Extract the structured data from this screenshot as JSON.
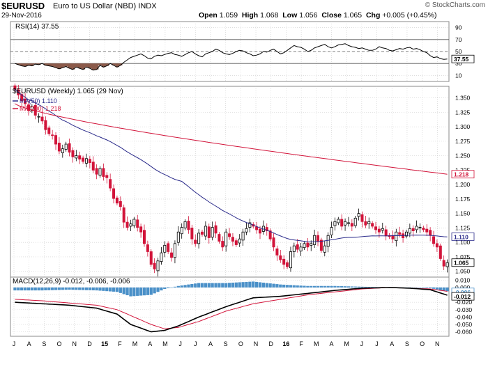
{
  "header": {
    "symbol": "$EURUSD",
    "name": "Euro to US Dollar (NBD)",
    "exchange": "INDX",
    "date": "29-Nov-2016",
    "open_label": "Open",
    "open": "1.059",
    "high_label": "High",
    "high": "1.068",
    "low_label": "Low",
    "low": "1.056",
    "close_label": "Close",
    "close": "1.065",
    "chg_label": "Chg",
    "chg": "+0.005 (+0.45%)",
    "credit": "© StockCharts.com"
  },
  "colors": {
    "up": "#000000",
    "down": "#d2143a",
    "ma50": "#2a2a8a",
    "ma200": "#d2143a",
    "rsi_line": "#000000",
    "rsi_fill": "#8b5a4a",
    "macd": "#000000",
    "signal": "#d2143a",
    "hist": "#4a90c8",
    "grid": "#cccccc"
  },
  "chart_data": [
    {
      "type": "line",
      "panel": "rsi",
      "title": "RSI(14) 37.55",
      "y_ticks": [
        "90",
        "70",
        "50",
        "30",
        "10"
      ],
      "ylim": [
        0,
        100
      ],
      "overbought": 70,
      "oversold": 30,
      "last_value_label": "37.55",
      "y_count": 128,
      "y_note": "weekly RSI, Jul-2014 to Nov-2016",
      "y": [
        30,
        28,
        26,
        25,
        27,
        26,
        29,
        28,
        30,
        27,
        26,
        25,
        23,
        21,
        23,
        25,
        22,
        20,
        24,
        22,
        20,
        24,
        22,
        19,
        20,
        27,
        24,
        26,
        30,
        27,
        24,
        27,
        32,
        36,
        40,
        42,
        44,
        46,
        43,
        39,
        38,
        42,
        44,
        43,
        45,
        47,
        48,
        45,
        44,
        42,
        45,
        48,
        50,
        46,
        43,
        41,
        46,
        48,
        50,
        54,
        52,
        48,
        46,
        45,
        47,
        50,
        52,
        51,
        48,
        46,
        43,
        44,
        46,
        50,
        49,
        52,
        54,
        50,
        46,
        48,
        52,
        56,
        60,
        58,
        57,
        54,
        50,
        52,
        56,
        58,
        60,
        62,
        58,
        56,
        58,
        61,
        62,
        63,
        60,
        58,
        57,
        55,
        56,
        54,
        52,
        52,
        54,
        58,
        56,
        55,
        52,
        51,
        53,
        55,
        54,
        56,
        57,
        54,
        55,
        53,
        50,
        48,
        43,
        40,
        41,
        38,
        37,
        37.55
      ]
    },
    {
      "type": "candlestick",
      "panel": "price",
      "title": "$EURUSD (Weekly) 1.065 (29 Nov)",
      "legend": [
        {
          "name": "MA(50) 1.110",
          "color": "#2a2a8a"
        },
        {
          "name": "MA(200) 1.218",
          "color": "#d2143a"
        }
      ],
      "y_ticks": [
        "1.350",
        "1.325",
        "1.300",
        "1.275",
        "1.250",
        "1.225",
        "1.200",
        "1.175",
        "1.150",
        "1.125",
        "1.100",
        "1.075",
        "1.050"
      ],
      "ylim": [
        1.04,
        1.37
      ],
      "x_ticks": [
        "J",
        "A",
        "S",
        "O",
        "N",
        "D",
        "15",
        "F",
        "M",
        "A",
        "M",
        "J",
        "J",
        "A",
        "S",
        "O",
        "N",
        "D",
        "16",
        "F",
        "M",
        "A",
        "M",
        "J",
        "J",
        "A",
        "S",
        "O",
        "N"
      ],
      "bold_x_ticks": [
        "15",
        "16"
      ],
      "current_price_label": "1.065",
      "ma50_label": "1.110",
      "ma200_label": "1.218",
      "close_count": 128,
      "close_note": "approximate weekly closes, Jul-2014 to Nov-2016",
      "close": [
        1.365,
        1.355,
        1.345,
        1.34,
        1.328,
        1.335,
        1.32,
        1.318,
        1.31,
        1.295,
        1.288,
        1.285,
        1.27,
        1.258,
        1.262,
        1.27,
        1.256,
        1.248,
        1.25,
        1.244,
        1.24,
        1.245,
        1.238,
        1.225,
        1.218,
        1.228,
        1.214,
        1.212,
        1.194,
        1.176,
        1.168,
        1.162,
        1.135,
        1.126,
        1.132,
        1.14,
        1.126,
        1.118,
        1.098,
        1.084,
        1.062,
        1.054,
        1.068,
        1.082,
        1.095,
        1.084,
        1.074,
        1.098,
        1.118,
        1.126,
        1.136,
        1.122,
        1.106,
        1.098,
        1.116,
        1.114,
        1.128,
        1.108,
        1.126,
        1.116,
        1.102,
        1.092,
        1.118,
        1.11,
        1.102,
        1.096,
        1.106,
        1.118,
        1.124,
        1.134,
        1.128,
        1.122,
        1.116,
        1.128,
        1.12,
        1.106,
        1.092,
        1.078,
        1.07,
        1.062,
        1.058,
        1.084,
        1.094,
        1.088,
        1.092,
        1.098,
        1.092,
        1.098,
        1.112,
        1.102,
        1.086,
        1.094,
        1.112,
        1.126,
        1.136,
        1.14,
        1.128,
        1.136,
        1.134,
        1.128,
        1.142,
        1.15,
        1.136,
        1.13,
        1.136,
        1.128,
        1.122,
        1.118,
        1.124,
        1.112,
        1.11,
        1.106,
        1.118,
        1.114,
        1.108,
        1.118,
        1.124,
        1.12,
        1.128,
        1.126,
        1.122,
        1.118,
        1.112,
        1.098,
        1.092,
        1.072,
        1.059,
        1.065
      ],
      "ma50_last": 1.11,
      "ma200_last": 1.218
    },
    {
      "type": "line",
      "panel": "macd",
      "title": "MACD(12,26,9) -0.012, -0.006, -0.006",
      "series_names": [
        "MACD",
        "Signal",
        "Histogram"
      ],
      "y_ticks": [
        "0.010",
        "0.000",
        "-0.010",
        "-0.020",
        "-0.030",
        "-0.040",
        "-0.050",
        "-0.060"
      ],
      "ylim": [
        -0.066,
        0.014
      ],
      "last_labels": [
        "-0.006",
        "-0.012"
      ],
      "x_ticks": [
        "J",
        "A",
        "S",
        "O",
        "N",
        "D",
        "15",
        "F",
        "M",
        "A",
        "M",
        "J",
        "J",
        "A",
        "S",
        "O",
        "N",
        "D",
        "16",
        "F",
        "M",
        "A",
        "M",
        "J",
        "J",
        "A",
        "S",
        "O",
        "N"
      ],
      "point_count": 128,
      "macd_anchors": [
        [
          0,
          -0.02
        ],
        [
          8,
          -0.022
        ],
        [
          16,
          -0.024
        ],
        [
          24,
          -0.028
        ],
        [
          30,
          -0.036
        ],
        [
          34,
          -0.05
        ],
        [
          40,
          -0.06
        ],
        [
          44,
          -0.058
        ],
        [
          48,
          -0.052
        ],
        [
          54,
          -0.04
        ],
        [
          62,
          -0.026
        ],
        [
          70,
          -0.014
        ],
        [
          78,
          -0.012
        ],
        [
          86,
          -0.008
        ],
        [
          94,
          -0.004
        ],
        [
          102,
          -0.001
        ],
        [
          110,
          0.0
        ],
        [
          116,
          -0.001
        ],
        [
          122,
          -0.003
        ],
        [
          128,
          -0.012
        ]
      ],
      "signal_anchors": [
        [
          0,
          -0.016
        ],
        [
          8,
          -0.018
        ],
        [
          16,
          -0.021
        ],
        [
          24,
          -0.024
        ],
        [
          30,
          -0.03
        ],
        [
          34,
          -0.038
        ],
        [
          40,
          -0.05
        ],
        [
          44,
          -0.056
        ],
        [
          48,
          -0.054
        ],
        [
          54,
          -0.046
        ],
        [
          62,
          -0.032
        ],
        [
          70,
          -0.022
        ],
        [
          78,
          -0.016
        ],
        [
          86,
          -0.01
        ],
        [
          94,
          -0.006
        ],
        [
          102,
          -0.002
        ],
        [
          110,
          0.0
        ],
        [
          116,
          -0.001
        ],
        [
          122,
          -0.002
        ],
        [
          128,
          -0.006
        ]
      ]
    }
  ]
}
